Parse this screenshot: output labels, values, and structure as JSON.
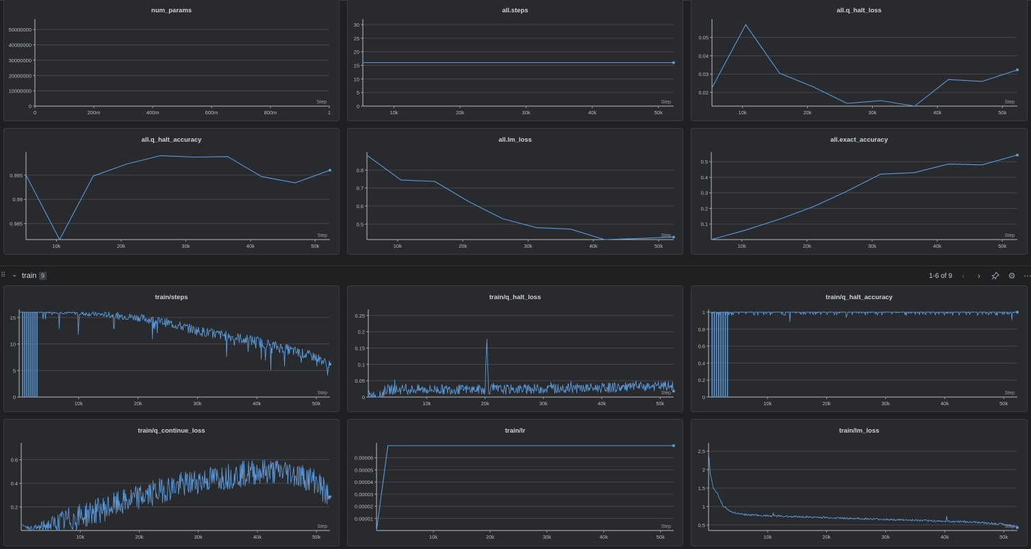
{
  "section": {
    "title": "train",
    "count": "9",
    "pager": "1-6 of 9"
  },
  "icons": [
    "drag-handle-icon",
    "chevron-down-icon",
    "chevron-left-icon",
    "chevron-right-icon",
    "pin-icon",
    "gear-icon",
    "more-icon"
  ],
  "colors": {
    "line": "#5b9bdc",
    "panel_bg": "#282a2e",
    "page_bg": "#1e2022",
    "grid": "#44474d"
  },
  "chart_data": [
    {
      "id": "num_params",
      "title": "num_params",
      "type": "line",
      "step_label": "Step",
      "xticks": [
        "0",
        "200m",
        "400m",
        "600m",
        "800m",
        "1"
      ],
      "xlim": [
        0,
        1
      ],
      "yticks": [
        "0",
        "10000000",
        "20000000",
        "30000000",
        "40000000",
        "50000000"
      ],
      "ylim": [
        0,
        55000000
      ],
      "series": [
        {
          "x": [],
          "y": []
        }
      ]
    },
    {
      "id": "all_steps",
      "title": "all.steps",
      "type": "line",
      "step_label": "Step",
      "xticks": [
        "10k",
        "20k",
        "30k",
        "40k",
        "50k"
      ],
      "xlim": [
        5300,
        52300
      ],
      "yticks": [
        "0",
        "5",
        "10",
        "15",
        "20",
        "25",
        "30"
      ],
      "ylim": [
        0,
        31
      ],
      "series": [
        {
          "x": [
            5300,
            52300
          ],
          "y": [
            16,
            16
          ]
        }
      ]
    },
    {
      "id": "all_q_halt_loss",
      "title": "all.q_halt_loss",
      "type": "line",
      "step_label": "Step",
      "xticks": [
        "10k",
        "20k",
        "30k",
        "40k",
        "50k"
      ],
      "xlim": [
        5300,
        52300
      ],
      "yticks": [
        "0.02",
        "0.03",
        "0.04",
        "0.05"
      ],
      "ylim": [
        0.0125,
        0.0585
      ],
      "series": [
        {
          "x": [
            5300,
            10500,
            15700,
            20900,
            26100,
            31300,
            36500,
            41700,
            46900,
            52300
          ],
          "y": [
            0.0225,
            0.057,
            0.0305,
            0.023,
            0.014,
            0.0155,
            0.0125,
            0.027,
            0.026,
            0.0323
          ]
        }
      ]
    },
    {
      "id": "all_q_halt_accuracy",
      "title": "all.q_halt_accuracy",
      "type": "line",
      "step_label": "Step",
      "xticks": [
        "10k",
        "20k",
        "30k",
        "40k",
        "50k"
      ],
      "xlim": [
        5300,
        52300
      ],
      "yticks": [
        "0.985",
        "0.99",
        "0.995"
      ],
      "ylim": [
        0.9817,
        0.9992
      ],
      "series": [
        {
          "x": [
            5300,
            10500,
            15700,
            20900,
            26100,
            31300,
            36500,
            41700,
            46900,
            52300
          ],
          "y": [
            0.995,
            0.9817,
            0.9948,
            0.9973,
            0.999,
            0.9987,
            0.9988,
            0.9947,
            0.9934,
            0.996
          ]
        }
      ]
    },
    {
      "id": "all_lm_loss",
      "title": "all.lm_loss",
      "type": "line",
      "step_label": "Step",
      "xticks": [
        "10k",
        "20k",
        "30k",
        "40k",
        "50k"
      ],
      "xlim": [
        5300,
        52300
      ],
      "yticks": [
        "0.5",
        "0.6",
        "0.7",
        "0.8"
      ],
      "ylim": [
        0.414,
        0.885
      ],
      "series": [
        {
          "x": [
            5300,
            10500,
            15700,
            20900,
            26100,
            31300,
            36500,
            41700,
            46900,
            52300
          ],
          "y": [
            0.882,
            0.745,
            0.737,
            0.625,
            0.53,
            0.48,
            0.472,
            0.414,
            0.42,
            0.428
          ]
        }
      ]
    },
    {
      "id": "all_exact_accuracy",
      "title": "all.exact_accuracy",
      "type": "line",
      "step_label": "Step",
      "xticks": [
        "10k",
        "20k",
        "30k",
        "40k",
        "50k"
      ],
      "xlim": [
        5300,
        52300
      ],
      "yticks": [
        "0.1",
        "0.2",
        "0.3",
        "0.4",
        "0.5"
      ],
      "ylim": [
        0.0,
        0.545
      ],
      "series": [
        {
          "x": [
            5300,
            10500,
            15700,
            20900,
            26100,
            31300,
            36500,
            41700,
            46900,
            52300
          ],
          "y": [
            0.0,
            0.06,
            0.13,
            0.21,
            0.31,
            0.42,
            0.43,
            0.485,
            0.48,
            0.543
          ]
        }
      ]
    },
    {
      "id": "train_steps",
      "title": "train/steps",
      "type": "line",
      "step_label": "Step",
      "xticks": [
        "10k",
        "20k",
        "30k",
        "40k",
        "50k"
      ],
      "xlim": [
        0,
        52300
      ],
      "yticks": [
        "0",
        "5",
        "10",
        "15"
      ],
      "ylim": [
        0,
        16
      ],
      "series": [
        {
          "x": [
            0,
            3000,
            6000,
            10000,
            15000,
            20000,
            25000,
            30000,
            35000,
            40000,
            45000,
            50000,
            52300
          ],
          "y": [
            16,
            16,
            16,
            15.8,
            15.5,
            15,
            14,
            12.5,
            11.5,
            10.5,
            9,
            7.5,
            6
          ]
        }
      ]
    },
    {
      "id": "train_q_halt_loss",
      "title": "train/q_halt_loss",
      "type": "line",
      "step_label": "Step",
      "xticks": [
        "10k",
        "20k",
        "30k",
        "40k",
        "50k"
      ],
      "xlim": [
        0,
        52300
      ],
      "yticks": [
        "0",
        "0.05",
        "0.1",
        "0.15",
        "0.2",
        "0.25"
      ],
      "ylim": [
        0,
        0.26
      ],
      "series": [
        {
          "x": [
            0,
            2000,
            3000,
            10000,
            20000,
            20300,
            20600,
            30000,
            40000,
            50000,
            52300
          ],
          "y": [
            0.003,
            0.0,
            0.02,
            0.02,
            0.02,
            0.175,
            0.02,
            0.022,
            0.025,
            0.03,
            0.03
          ]
        }
      ]
    },
    {
      "id": "train_q_halt_accuracy",
      "title": "train/q_halt_accuracy",
      "type": "line",
      "step_label": "Step",
      "xticks": [
        "10k",
        "20k",
        "30k",
        "40k",
        "50k"
      ],
      "xlim": [
        0,
        52300
      ],
      "yticks": [
        "0",
        "0.2",
        "0.4",
        "0.6",
        "0.8",
        "1"
      ],
      "ylim": [
        0,
        1
      ],
      "series": [
        {
          "x": [
            0,
            3000,
            10000,
            20000,
            30000,
            40000,
            50000,
            52300
          ],
          "y": [
            1,
            1,
            0.99,
            0.99,
            0.99,
            0.99,
            0.99,
            1
          ]
        }
      ]
    },
    {
      "id": "train_q_continue_loss",
      "title": "train/q_continue_loss",
      "type": "line",
      "step_label": "Step",
      "xticks": [
        "10k",
        "20k",
        "30k",
        "40k",
        "50k"
      ],
      "xlim": [
        0,
        52300
      ],
      "yticks": [
        "0.2",
        "0.4",
        "0.6"
      ],
      "ylim": [
        0,
        0.72
      ],
      "series": [
        {
          "x": [
            0,
            2000,
            5000,
            10000,
            15000,
            20000,
            25000,
            30000,
            35000,
            40000,
            45000,
            50000,
            52300
          ],
          "y": [
            0.05,
            0.01,
            0.05,
            0.12,
            0.2,
            0.28,
            0.36,
            0.42,
            0.46,
            0.5,
            0.5,
            0.42,
            0.27
          ]
        }
      ]
    },
    {
      "id": "train_lr",
      "title": "train/lr",
      "type": "line",
      "step_label": "Step",
      "xticks": [
        "10k",
        "20k",
        "30k",
        "40k",
        "50k"
      ],
      "xlim": [
        0,
        52300
      ],
      "yticks": [
        "0.00001",
        "0.00002",
        "0.00003",
        "0.00004",
        "0.00005",
        "0.00006"
      ],
      "ylim": [
        0,
        7e-05
      ],
      "series": [
        {
          "x": [
            0,
            2000,
            52300
          ],
          "y": [
            0,
            7e-05,
            7e-05
          ]
        }
      ]
    },
    {
      "id": "train_lm_loss",
      "title": "train/lm_loss",
      "type": "line",
      "step_label": "Step",
      "xticks": [
        "10k",
        "20k",
        "30k",
        "40k",
        "50k"
      ],
      "xlim": [
        0,
        52300
      ],
      "yticks": [
        "0.5",
        "1",
        "1.5",
        "2",
        "2.5"
      ],
      "ylim": [
        0.35,
        2.65
      ],
      "series": [
        {
          "x": [
            0,
            300,
            800,
            1500,
            2500,
            4000,
            6000,
            10000,
            20000,
            30000,
            40000,
            45000,
            50000,
            52300
          ],
          "y": [
            2.45,
            1.9,
            1.5,
            1.35,
            1.0,
            0.85,
            0.78,
            0.75,
            0.7,
            0.65,
            0.6,
            0.58,
            0.52,
            0.45
          ]
        }
      ]
    }
  ]
}
